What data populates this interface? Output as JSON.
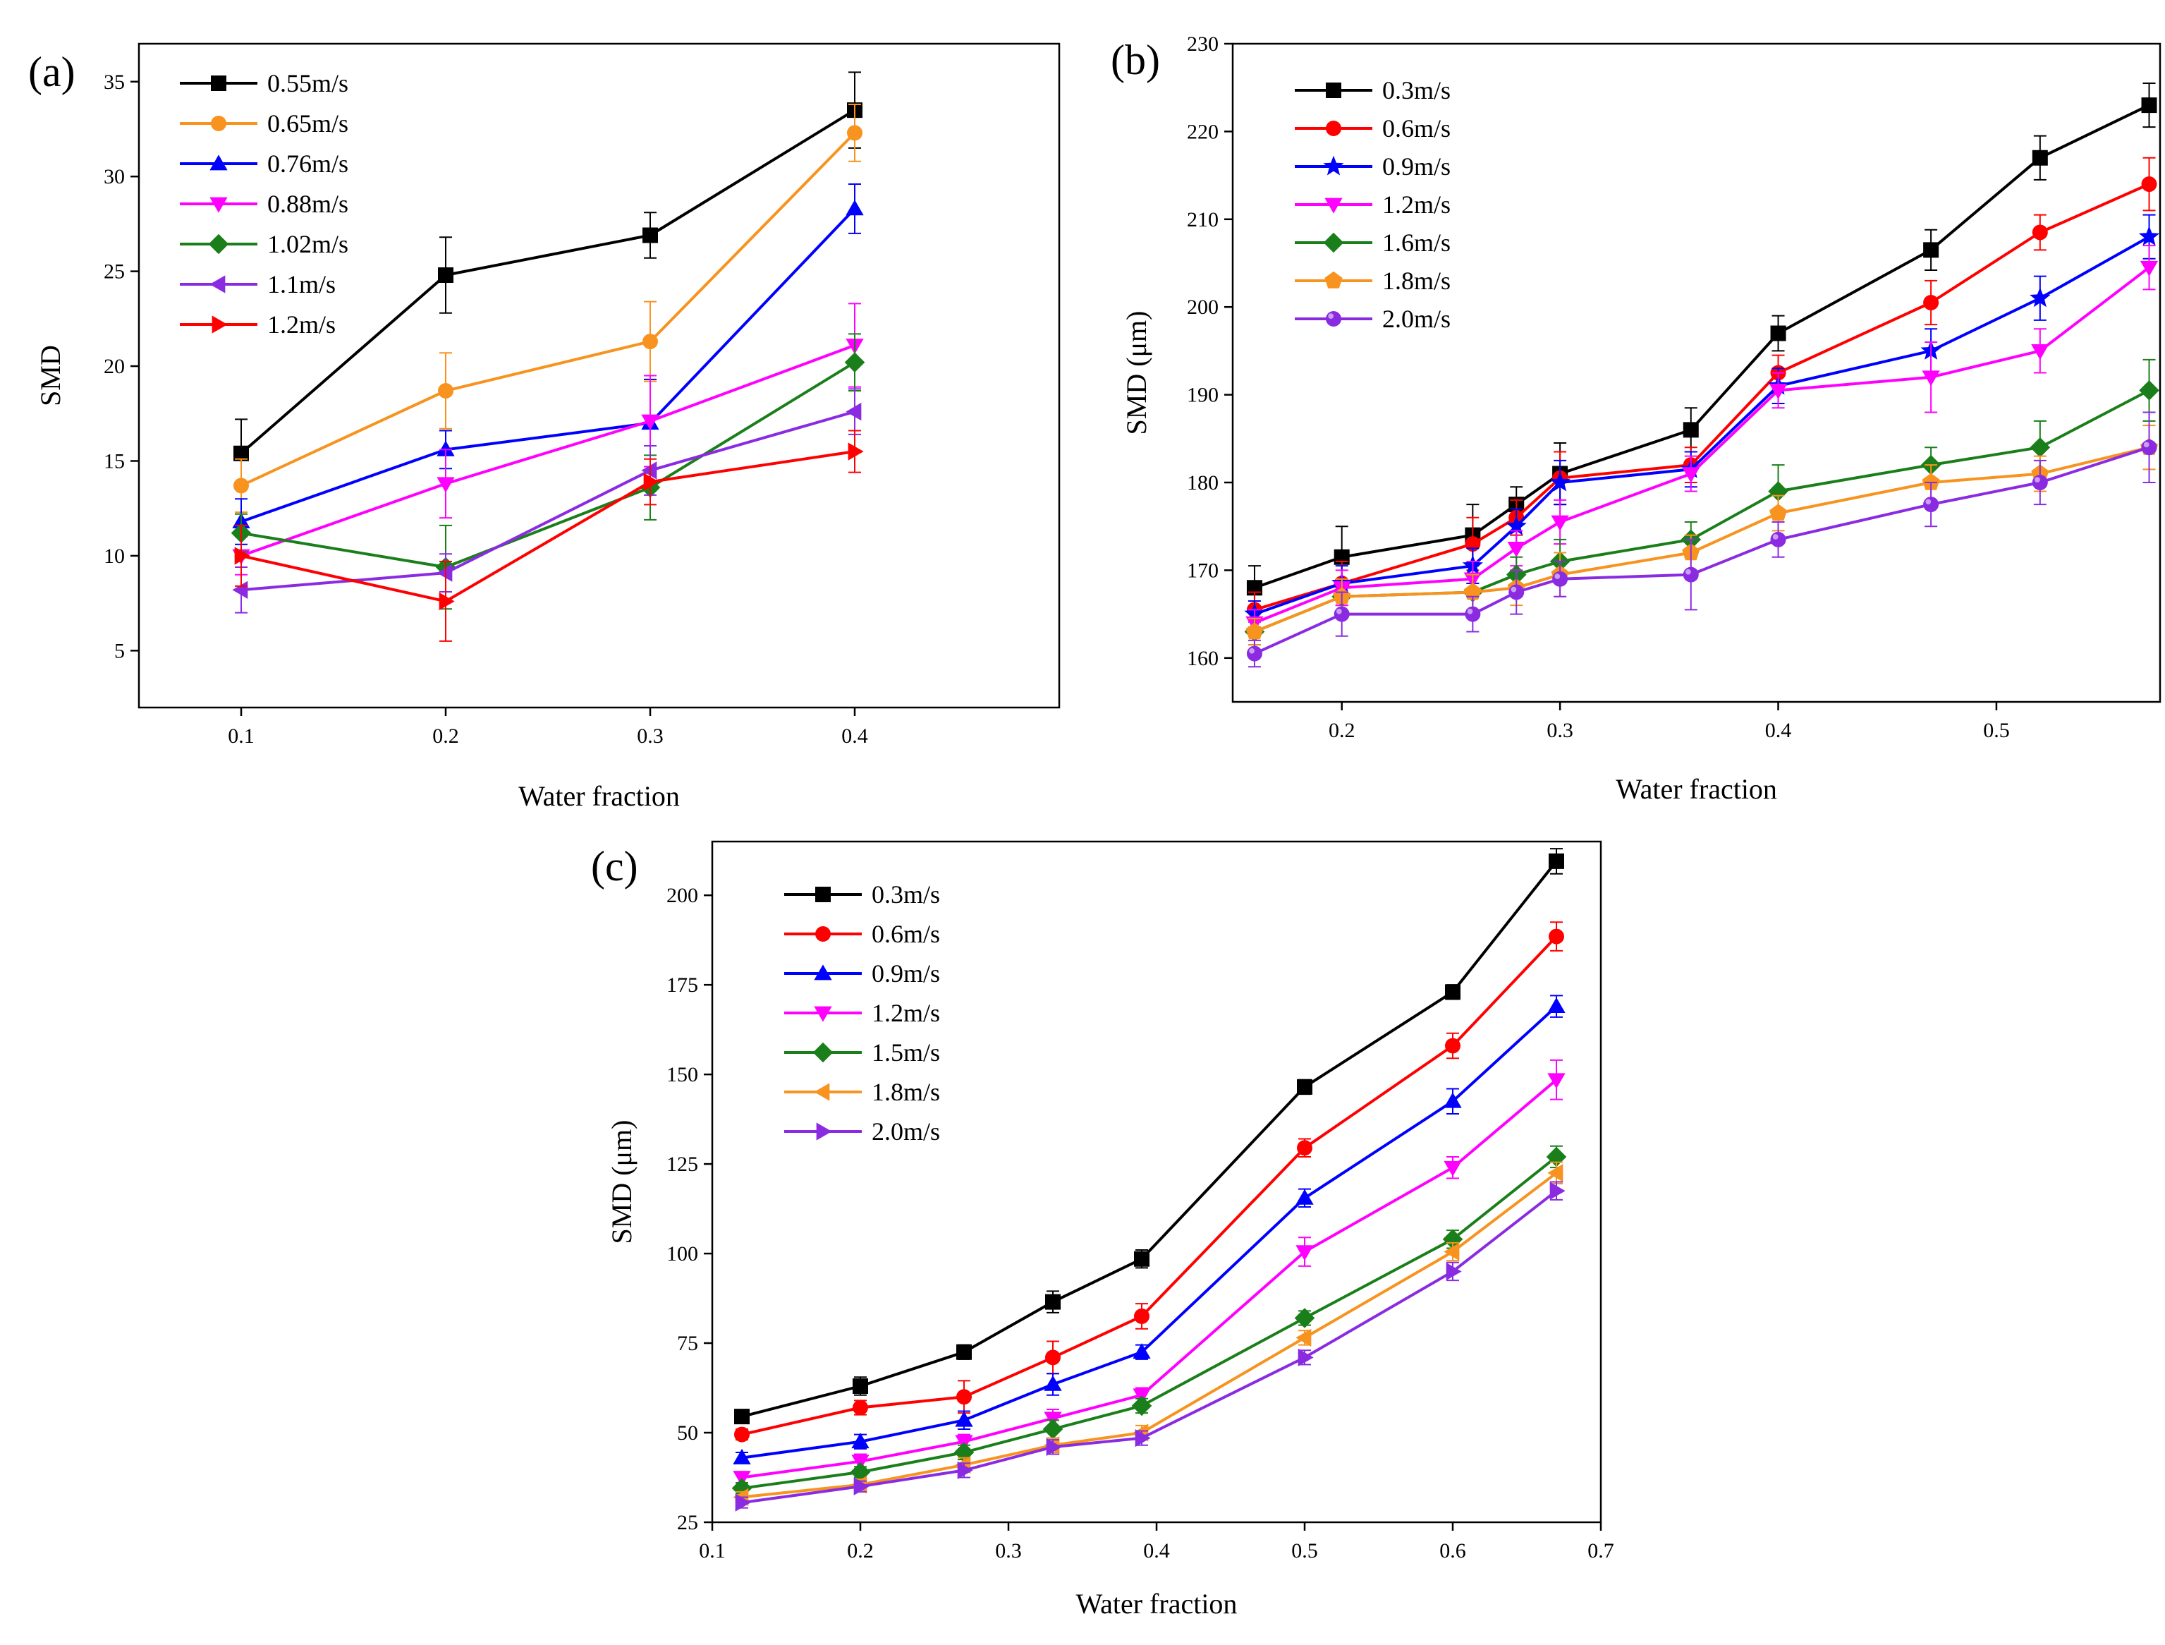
{
  "figure": {
    "panels": [
      "a",
      "b",
      "c"
    ]
  },
  "chart_data": [
    {
      "panel_label": "(a)",
      "type": "line",
      "title": "",
      "xlabel": "Water fraction",
      "ylabel": "SMD",
      "xlim": [
        0.05,
        0.5
      ],
      "ylim": [
        2,
        37
      ],
      "xticks": [
        0.1,
        0.2,
        0.3,
        0.4
      ],
      "xtick_labels": [
        "0.1",
        "0.2",
        "0.3",
        "0.4"
      ],
      "yticks": [
        5,
        10,
        15,
        20,
        25,
        30,
        35
      ],
      "ytick_labels": [
        "5",
        "10",
        "15",
        "20",
        "25",
        "30",
        "35"
      ],
      "grid": false,
      "legend_position": "top-left",
      "x": [
        0.1,
        0.2,
        0.3,
        0.4
      ],
      "series": [
        {
          "name": "0.55m/s",
          "color": "#000000",
          "marker": "square",
          "values": [
            15.4,
            24.8,
            26.9,
            33.5
          ],
          "errors": [
            1.8,
            2.0,
            1.2,
            2.0
          ]
        },
        {
          "name": "0.65m/s",
          "color": "#F7931E",
          "marker": "circle",
          "values": [
            13.7,
            18.7,
            21.3,
            32.3
          ],
          "errors": [
            1.4,
            2.0,
            2.1,
            1.5
          ]
        },
        {
          "name": "0.76m/s",
          "color": "#0000FF",
          "marker": "triangle-up",
          "values": [
            11.8,
            15.6,
            17.0,
            28.3
          ],
          "errors": [
            1.2,
            1.0,
            2.3,
            1.3
          ]
        },
        {
          "name": "0.88m/s",
          "color": "#FF00FF",
          "marker": "triangle-down",
          "values": [
            10.0,
            13.8,
            17.1,
            21.1
          ],
          "errors": [
            1.0,
            1.8,
            2.4,
            2.2
          ]
        },
        {
          "name": "1.02m/s",
          "color": "#1A7F1A",
          "marker": "diamond",
          "values": [
            11.2,
            9.4,
            13.6,
            20.2
          ],
          "errors": [
            1.0,
            2.2,
            1.7,
            1.5
          ]
        },
        {
          "name": "1.1m/s",
          "color": "#8A2BE2",
          "marker": "triangle-left",
          "values": [
            8.2,
            9.1,
            14.5,
            17.6
          ],
          "errors": [
            1.2,
            1.0,
            1.3,
            1.2
          ]
        },
        {
          "name": "1.2m/s",
          "color": "#FF0000",
          "marker": "triangle-right",
          "values": [
            10.0,
            7.6,
            13.9,
            15.5
          ],
          "errors": [
            1.6,
            2.1,
            1.2,
            1.1
          ]
        }
      ]
    },
    {
      "panel_label": "(b)",
      "type": "line",
      "title": "",
      "xlabel": "Water fraction",
      "ylabel": "SMD (μm)",
      "xlim": [
        0.15,
        0.575
      ],
      "ylim": [
        155,
        230
      ],
      "xticks": [
        0.2,
        0.3,
        0.4,
        0.5
      ],
      "xtick_labels": [
        "0.2",
        "0.3",
        "0.4",
        "0.5"
      ],
      "yticks": [
        160,
        170,
        180,
        190,
        200,
        210,
        220,
        230
      ],
      "ytick_labels": [
        "160",
        "170",
        "180",
        "190",
        "200",
        "210",
        "220",
        "230"
      ],
      "grid": false,
      "legend_position": "top-left",
      "x": [
        0.16,
        0.2,
        0.26,
        0.28,
        0.3,
        0.36,
        0.4,
        0.47,
        0.52,
        0.57
      ],
      "series": [
        {
          "name": "0.3m/s",
          "color": "#000000",
          "marker": "square",
          "values": [
            168.0,
            171.5,
            174.0,
            177.5,
            181.0,
            186.0,
            197.0,
            206.5,
            217.0,
            223.0
          ],
          "errors": [
            2.5,
            3.5,
            3.5,
            2.0,
            3.5,
            2.5,
            2.0,
            2.3,
            2.5,
            2.5
          ]
        },
        {
          "name": "0.6m/s",
          "color": "#FF0000",
          "marker": "circle",
          "values": [
            165.5,
            168.5,
            173.0,
            176.0,
            180.5,
            182.0,
            192.5,
            200.5,
            208.5,
            214.0
          ],
          "errors": [
            2.0,
            2.5,
            3.0,
            2.0,
            3.0,
            2.0,
            2.0,
            2.5,
            2.0,
            3.0
          ]
        },
        {
          "name": "0.9m/s",
          "color": "#0000FF",
          "marker": "star",
          "values": [
            165.0,
            168.5,
            170.5,
            175.0,
            180.0,
            181.5,
            191.0,
            195.0,
            201.0,
            208.0
          ],
          "errors": [
            1.5,
            2.0,
            2.0,
            2.0,
            2.5,
            2.0,
            2.0,
            2.5,
            2.5,
            2.5
          ]
        },
        {
          "name": "1.2m/s",
          "color": "#FF00FF",
          "marker": "triangle-down",
          "values": [
            164.0,
            168.0,
            169.0,
            172.5,
            175.5,
            181.0,
            190.5,
            192.0,
            195.0,
            204.5
          ],
          "errors": [
            1.5,
            2.0,
            2.0,
            2.0,
            2.5,
            2.0,
            2.0,
            4.0,
            2.5,
            2.5
          ]
        },
        {
          "name": "1.6m/s",
          "color": "#1A7F1A",
          "marker": "diamond",
          "values": [
            163.0,
            167.0,
            167.5,
            169.5,
            171.0,
            173.5,
            179.0,
            182.0,
            184.0,
            190.5
          ],
          "errors": [
            1.5,
            2.0,
            2.0,
            2.0,
            2.5,
            2.0,
            3.0,
            2.0,
            3.0,
            3.5
          ]
        },
        {
          "name": "1.8m/s",
          "color": "#F7931E",
          "marker": "pentagon",
          "values": [
            163.0,
            167.0,
            167.5,
            168.0,
            169.5,
            172.0,
            176.5,
            180.0,
            181.0,
            184.0
          ],
          "errors": [
            1.5,
            2.0,
            2.0,
            2.0,
            2.5,
            2.0,
            2.0,
            2.0,
            2.0,
            2.5
          ]
        },
        {
          "name": "2.0m/s",
          "color": "#8A2BE2",
          "marker": "sphere",
          "values": [
            160.5,
            165.0,
            165.0,
            167.5,
            169.0,
            169.5,
            173.5,
            177.5,
            180.0,
            184.0
          ],
          "errors": [
            1.5,
            2.5,
            2.0,
            2.5,
            2.0,
            4.0,
            2.0,
            2.5,
            2.5,
            4.0
          ]
        }
      ]
    },
    {
      "panel_label": "(c)",
      "type": "line",
      "title": "",
      "xlabel": "Water fraction",
      "ylabel": "SMD (μm)",
      "xlim": [
        0.1,
        0.7
      ],
      "ylim": [
        25,
        215
      ],
      "xticks": [
        0.1,
        0.2,
        0.3,
        0.4,
        0.5,
        0.6,
        0.7
      ],
      "xtick_labels": [
        "0.1",
        "0.2",
        "0.3",
        "0.4",
        "0.5",
        "0.6",
        "0.7"
      ],
      "yticks": [
        25,
        50,
        75,
        100,
        125,
        150,
        175,
        200
      ],
      "ytick_labels": [
        "25",
        "50",
        "75",
        "100",
        "125",
        "150",
        "175",
        "200"
      ],
      "grid": false,
      "legend_position": "top-left",
      "x": [
        0.12,
        0.2,
        0.27,
        0.33,
        0.39,
        0.5,
        0.6,
        0.67
      ],
      "series": [
        {
          "name": "0.3m/s",
          "color": "#000000",
          "marker": "square",
          "values": [
            54.5,
            63.0,
            72.5,
            86.5,
            98.5,
            146.5,
            173.0,
            209.5
          ],
          "errors": [
            1.5,
            2.5,
            2.0,
            3.0,
            2.5,
            2.0,
            2.0,
            3.5
          ]
        },
        {
          "name": "0.6m/s",
          "color": "#FF0000",
          "marker": "circle",
          "values": [
            49.5,
            57.0,
            60.0,
            71.0,
            82.5,
            129.5,
            158.0,
            188.5
          ],
          "errors": [
            1.5,
            2.0,
            4.5,
            4.5,
            3.5,
            2.5,
            3.5,
            4.0
          ]
        },
        {
          "name": "0.9m/s",
          "color": "#0000FF",
          "marker": "triangle-up",
          "values": [
            43.0,
            47.5,
            53.5,
            63.5,
            72.5,
            115.5,
            142.5,
            169.0
          ],
          "errors": [
            1.5,
            2.0,
            2.5,
            3.0,
            2.0,
            2.5,
            3.5,
            3.0
          ]
        },
        {
          "name": "1.2m/s",
          "color": "#FF00FF",
          "marker": "triangle-down",
          "values": [
            37.5,
            42.0,
            47.5,
            54.0,
            60.5,
            100.5,
            124.0,
            148.5
          ],
          "errors": [
            1.5,
            2.0,
            2.0,
            2.5,
            2.0,
            4.0,
            3.0,
            5.5
          ]
        },
        {
          "name": "1.5m/s",
          "color": "#1A7F1A",
          "marker": "diamond",
          "values": [
            34.5,
            39.0,
            44.5,
            51.0,
            57.5,
            82.0,
            104.0,
            127.0
          ],
          "errors": [
            1.5,
            1.5,
            2.0,
            2.5,
            2.0,
            2.0,
            2.5,
            3.0
          ]
        },
        {
          "name": "1.8m/s",
          "color": "#F7931E",
          "marker": "triangle-left",
          "values": [
            32.0,
            35.5,
            41.0,
            46.5,
            50.0,
            76.5,
            100.5,
            122.5
          ],
          "errors": [
            1.5,
            1.5,
            2.0,
            2.0,
            2.0,
            2.0,
            2.5,
            3.0
          ]
        },
        {
          "name": "2.0m/s",
          "color": "#8A2BE2",
          "marker": "triangle-right",
          "values": [
            30.5,
            35.0,
            39.5,
            46.0,
            48.5,
            71.0,
            95.0,
            117.5
          ],
          "errors": [
            1.5,
            1.5,
            2.0,
            2.0,
            2.0,
            2.0,
            2.5,
            2.5
          ]
        }
      ]
    }
  ]
}
